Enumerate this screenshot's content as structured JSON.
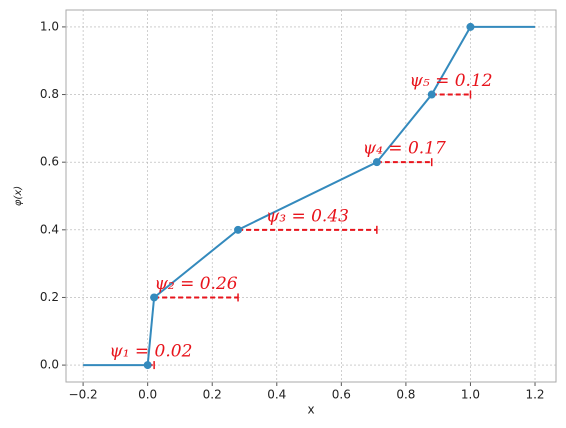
{
  "chart_data": {
    "type": "line",
    "x_label": "x",
    "y_label": "φ(x)",
    "xlim": [
      -0.253,
      1.265
    ],
    "ylim": [
      -0.05,
      1.05
    ],
    "xticks": [
      {
        "value": -0.2,
        "label": "−0.2"
      },
      {
        "value": 0,
        "label": "0.0"
      },
      {
        "value": 0.2,
        "label": "0.2"
      },
      {
        "value": 0.4,
        "label": "0.4"
      },
      {
        "value": 0.6,
        "label": "0.6"
      },
      {
        "value": 0.8,
        "label": "0.8"
      },
      {
        "value": 1,
        "label": "1.0"
      },
      {
        "value": 1.2,
        "label": "1.2"
      }
    ],
    "yticks": [
      {
        "value": 0,
        "label": "0.0"
      },
      {
        "value": 0.2,
        "label": "0.2"
      },
      {
        "value": 0.4,
        "label": "0.4"
      },
      {
        "value": 0.6,
        "label": "0.6"
      },
      {
        "value": 0.8,
        "label": "0.8"
      },
      {
        "value": 1,
        "label": "1.0"
      }
    ],
    "grid": true,
    "line": {
      "color": "#348abd",
      "x": [
        -0.2,
        0,
        0.02,
        0.28,
        0.71,
        0.88,
        1.0,
        1.2
      ],
      "y": [
        0,
        0,
        0.2,
        0.4,
        0.6,
        0.8,
        1.0,
        1.0
      ]
    },
    "points": {
      "color": "#348abd",
      "x": [
        0,
        0.02,
        0.28,
        0.71,
        0.88,
        1.0
      ],
      "y": [
        0,
        0.2,
        0.4,
        0.6,
        0.8,
        1.0
      ]
    },
    "interval_color": "#e8141c",
    "intervals": [
      {
        "label": "ψ₁ = 0.02",
        "psi": 0.02
      },
      {
        "label": "ψ₂ = 0.26",
        "psi": 0.26
      },
      {
        "label": "ψ₃ = 0.43",
        "psi": 0.43
      },
      {
        "label": "ψ₄ = 0.17",
        "psi": 0.17
      },
      {
        "label": "ψ₅ = 0.12",
        "psi": 0.12
      }
    ]
  }
}
